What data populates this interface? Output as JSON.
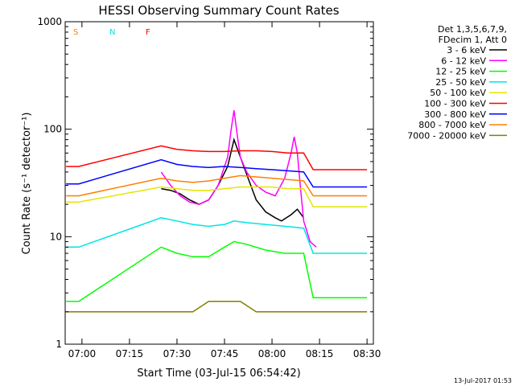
{
  "chart_data": {
    "type": "line",
    "title": "HESSI Observing Summary Count Rates",
    "xlabel": "Start Time (03-Jul-15 06:54:42)",
    "ylabel": "Count Rate (s⁻¹ detector⁻¹)",
    "yscale": "log",
    "xlim": [
      "06:54:42",
      "08:32:00"
    ],
    "ylim": [
      1,
      1000
    ],
    "xticks": [
      "07:00",
      "07:15",
      "07:30",
      "07:45",
      "08:00",
      "08:15",
      "08:30"
    ],
    "yticks": [
      "1",
      "10",
      "100",
      "1000"
    ],
    "grid": false,
    "legend_header": [
      "Det 1,3,5,6,7,9,",
      "FDecim 1, Att 0"
    ],
    "legend_position": "right",
    "footer": "13-Jul-2017 01:53",
    "flags": [
      {
        "label": "S",
        "color": "#ff7f00"
      },
      {
        "label": "N",
        "color": "#00e5e5"
      },
      {
        "label": "F",
        "color": "#ff0000"
      }
    ],
    "series": [
      {
        "name": "3 - 6 keV",
        "color": "#000000",
        "x": [
          "07:25",
          "07:28",
          "07:31",
          "07:34",
          "07:37",
          "07:40",
          "07:43",
          "07:46",
          "07:48",
          "07:50",
          "07:52",
          "07:55",
          "07:58",
          "08:01",
          "08:03",
          "08:06",
          "08:08",
          "08:10"
        ],
        "y": [
          28,
          27,
          25,
          22,
          20,
          22,
          30,
          45,
          80,
          55,
          38,
          22,
          17,
          15,
          14,
          16,
          18,
          15
        ]
      },
      {
        "name": "6 - 12 keV",
        "color": "#ff00ff",
        "x": [
          "07:25",
          "07:28",
          "07:31",
          "07:34",
          "07:37",
          "07:40",
          "07:43",
          "07:46",
          "07:47",
          "07:48",
          "07:49",
          "07:50",
          "07:52",
          "07:55",
          "07:58",
          "08:01",
          "08:04",
          "08:06",
          "08:07",
          "08:08",
          "08:09",
          "08:10",
          "08:12",
          "08:14"
        ],
        "y": [
          40,
          30,
          24,
          21,
          20,
          22,
          30,
          55,
          95,
          150,
          90,
          55,
          40,
          30,
          26,
          24,
          35,
          60,
          85,
          60,
          28,
          14,
          9,
          8
        ]
      },
      {
        "name": "12 - 25 keV",
        "color": "#00ff00",
        "x": [
          "06:55",
          "06:59",
          "07:25",
          "07:30",
          "07:35",
          "07:40",
          "07:45",
          "07:48",
          "07:52",
          "07:58",
          "08:04",
          "08:10",
          "08:13",
          "08:20",
          "08:30"
        ],
        "y": [
          2.5,
          2.5,
          8,
          7,
          6.5,
          6.5,
          8,
          9,
          8.5,
          7.5,
          7,
          7,
          2.7,
          2.7,
          2.7
        ]
      },
      {
        "name": "25 - 50 keV",
        "color": "#00e5e5",
        "x": [
          "06:55",
          "06:59",
          "07:25",
          "07:30",
          "07:35",
          "07:40",
          "07:45",
          "07:48",
          "07:52",
          "07:58",
          "08:04",
          "08:10",
          "08:13",
          "08:20",
          "08:30"
        ],
        "y": [
          8,
          8,
          15,
          14,
          13,
          12.5,
          13,
          14,
          13.5,
          13,
          12.5,
          12,
          7,
          7,
          7
        ]
      },
      {
        "name": "50 - 100 keV",
        "color": "#e5e500",
        "x": [
          "06:55",
          "06:59",
          "07:25",
          "07:30",
          "07:35",
          "07:40",
          "07:45",
          "07:50",
          "07:55",
          "08:00",
          "08:05",
          "08:10",
          "08:13",
          "08:20",
          "08:30"
        ],
        "y": [
          21,
          21,
          29,
          28,
          27,
          27,
          28,
          29,
          29,
          29,
          28,
          28,
          19,
          19,
          19
        ]
      },
      {
        "name": "100 - 300 keV",
        "color": "#ff0000",
        "x": [
          "06:55",
          "06:59",
          "07:25",
          "07:30",
          "07:35",
          "07:40",
          "07:45",
          "07:50",
          "07:55",
          "08:00",
          "08:05",
          "08:10",
          "08:13",
          "08:20",
          "08:30"
        ],
        "y": [
          45,
          45,
          70,
          65,
          63,
          62,
          62,
          63,
          63,
          62,
          60,
          60,
          42,
          42,
          42
        ]
      },
      {
        "name": "300 - 800 keV",
        "color": "#0000ff",
        "x": [
          "06:55",
          "06:59",
          "07:25",
          "07:30",
          "07:35",
          "07:40",
          "07:45",
          "07:50",
          "07:55",
          "08:00",
          "08:05",
          "08:10",
          "08:13",
          "08:20",
          "08:30"
        ],
        "y": [
          31,
          31,
          52,
          47,
          45,
          44,
          45,
          44,
          43,
          42,
          41,
          40,
          29,
          29,
          29
        ]
      },
      {
        "name": "800 - 7000 keV",
        "color": "#ff7f00",
        "x": [
          "06:55",
          "06:59",
          "07:25",
          "07:30",
          "07:35",
          "07:40",
          "07:45",
          "07:50",
          "07:55",
          "08:00",
          "08:05",
          "08:10",
          "08:13",
          "08:20",
          "08:30"
        ],
        "y": [
          24,
          24,
          35,
          33,
          32,
          33,
          35,
          37,
          36,
          35,
          34,
          33,
          24,
          24,
          24
        ]
      },
      {
        "name": "7000 - 20000 keV",
        "color": "#808000",
        "x": [
          "06:55",
          "06:59",
          "07:25",
          "07:30",
          "07:35",
          "07:40",
          "07:45",
          "07:50",
          "07:55",
          "08:00",
          "08:05",
          "08:10",
          "08:13",
          "08:20",
          "08:30"
        ],
        "y": [
          2,
          2,
          2,
          2,
          2,
          2.5,
          2.5,
          2.5,
          2,
          2,
          2,
          2,
          2,
          2,
          2
        ]
      }
    ]
  }
}
